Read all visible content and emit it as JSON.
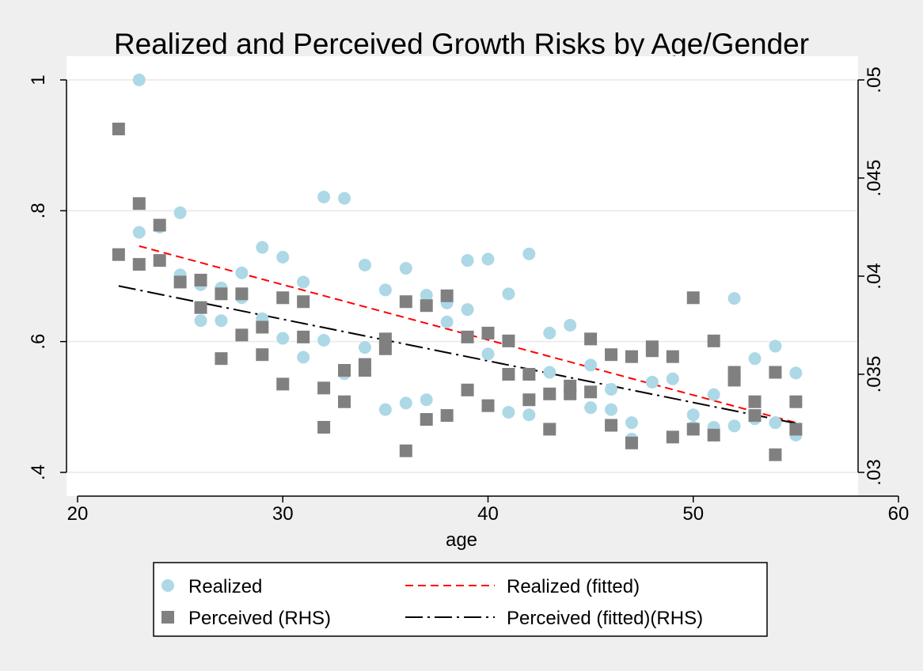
{
  "chart_data": {
    "type": "scatter",
    "title": "Realized and Perceived Growth Risks by Age/Gender",
    "xlabel": "age",
    "ylabel": "",
    "ylabel_right": "",
    "xlim": [
      20,
      60
    ],
    "ylim": [
      0.4,
      1.0
    ],
    "ylim_right": [
      0.03,
      0.05
    ],
    "x_ticks": [
      20,
      30,
      40,
      50,
      60
    ],
    "x_tick_labels": [
      "20",
      "30",
      "40",
      "50",
      "60"
    ],
    "y_ticks": [
      0.4,
      0.6,
      0.8,
      1.0
    ],
    "y_tick_labels": [
      ".4",
      ".6",
      ".8",
      "1"
    ],
    "y_right_ticks": [
      0.03,
      0.035,
      0.04,
      0.045,
      0.05
    ],
    "y_right_tick_labels": [
      ".03",
      ".035",
      ".04",
      ".045",
      ".05"
    ],
    "grid": "horizontal",
    "legend_position": "bottom",
    "colors": {
      "realized": "#add8e6",
      "perceived": "#808080",
      "realized_fit": "#ff0000",
      "perceived_fit": "#000000",
      "plot_bg": "#ffffff",
      "page_bg": "#efefef",
      "grid": "#e8e8e8"
    },
    "series": [
      {
        "name": "Realized",
        "axis": "left",
        "marker": "circle",
        "points": [
          [
            23,
            1.0
          ],
          [
            23,
            0.767
          ],
          [
            24,
            0.775
          ],
          [
            25,
            0.797
          ],
          [
            25,
            0.702
          ],
          [
            26,
            0.687
          ],
          [
            26,
            0.632
          ],
          [
            27,
            0.682
          ],
          [
            27,
            0.632
          ],
          [
            28,
            0.705
          ],
          [
            28,
            0.667
          ],
          [
            29,
            0.744
          ],
          [
            29,
            0.635
          ],
          [
            30,
            0.729
          ],
          [
            30,
            0.605
          ],
          [
            31,
            0.691
          ],
          [
            31,
            0.576
          ],
          [
            32,
            0.821
          ],
          [
            32,
            0.602
          ],
          [
            33,
            0.819
          ],
          [
            33,
            0.551
          ],
          [
            34,
            0.717
          ],
          [
            34,
            0.591
          ],
          [
            35,
            0.679
          ],
          [
            35,
            0.496
          ],
          [
            36,
            0.712
          ],
          [
            36,
            0.506
          ],
          [
            37,
            0.671
          ],
          [
            37,
            0.511
          ],
          [
            38,
            0.659
          ],
          [
            38,
            0.63
          ],
          [
            39,
            0.724
          ],
          [
            39,
            0.649
          ],
          [
            40,
            0.726
          ],
          [
            40,
            0.581
          ],
          [
            41,
            0.673
          ],
          [
            41,
            0.492
          ],
          [
            42,
            0.734
          ],
          [
            42,
            0.488
          ],
          [
            43,
            0.613
          ],
          [
            43,
            0.553
          ],
          [
            44,
            0.625
          ],
          [
            44,
            0.527
          ],
          [
            45,
            0.564
          ],
          [
            45,
            0.499
          ],
          [
            46,
            0.527
          ],
          [
            46,
            0.496
          ],
          [
            47,
            0.476
          ],
          [
            47,
            0.451
          ],
          [
            48,
            0.587
          ],
          [
            48,
            0.538
          ],
          [
            49,
            0.543
          ],
          [
            50,
            0.488
          ],
          [
            50,
            0.469
          ],
          [
            51,
            0.519
          ],
          [
            51,
            0.469
          ],
          [
            52,
            0.666
          ],
          [
            52,
            0.471
          ],
          [
            53,
            0.574
          ],
          [
            53,
            0.482
          ],
          [
            54,
            0.593
          ],
          [
            54,
            0.476
          ],
          [
            55,
            0.552
          ],
          [
            55,
            0.457
          ]
        ]
      },
      {
        "name": "Perceived (RHS)",
        "axis": "right",
        "marker": "square",
        "points": [
          [
            22,
            0.0475
          ],
          [
            22,
            0.0411
          ],
          [
            23,
            0.0437
          ],
          [
            23,
            0.0406
          ],
          [
            24,
            0.0426
          ],
          [
            24,
            0.0408
          ],
          [
            25,
            0.0397
          ],
          [
            26,
            0.0398
          ],
          [
            26,
            0.0384
          ],
          [
            27,
            0.0391
          ],
          [
            27,
            0.0358
          ],
          [
            28,
            0.0391
          ],
          [
            28,
            0.037
          ],
          [
            29,
            0.0374
          ],
          [
            29,
            0.036
          ],
          [
            30,
            0.0389
          ],
          [
            30,
            0.0345
          ],
          [
            31,
            0.0387
          ],
          [
            31,
            0.0369
          ],
          [
            32,
            0.0343
          ],
          [
            32,
            0.0323
          ],
          [
            33,
            0.0352
          ],
          [
            33,
            0.0336
          ],
          [
            34,
            0.0355
          ],
          [
            34,
            0.0352
          ],
          [
            35,
            0.0368
          ],
          [
            35,
            0.0363
          ],
          [
            36,
            0.0387
          ],
          [
            36,
            0.0311
          ],
          [
            37,
            0.0385
          ],
          [
            37,
            0.0327
          ],
          [
            38,
            0.039
          ],
          [
            38,
            0.0329
          ],
          [
            39,
            0.0369
          ],
          [
            39,
            0.0342
          ],
          [
            40,
            0.0371
          ],
          [
            40,
            0.0334
          ],
          [
            41,
            0.0367
          ],
          [
            41,
            0.035
          ],
          [
            42,
            0.035
          ],
          [
            42,
            0.0337
          ],
          [
            43,
            0.034
          ],
          [
            43,
            0.0322
          ],
          [
            44,
            0.0344
          ],
          [
            44,
            0.034
          ],
          [
            45,
            0.0368
          ],
          [
            45,
            0.0341
          ],
          [
            46,
            0.036
          ],
          [
            46,
            0.0324
          ],
          [
            47,
            0.0359
          ],
          [
            47,
            0.0315
          ],
          [
            48,
            0.0364
          ],
          [
            48,
            0.0362
          ],
          [
            49,
            0.0359
          ],
          [
            49,
            0.0318
          ],
          [
            50,
            0.0389
          ],
          [
            50,
            0.0322
          ],
          [
            51,
            0.0367
          ],
          [
            51,
            0.0319
          ],
          [
            52,
            0.0351
          ],
          [
            52,
            0.0347
          ],
          [
            53,
            0.0336
          ],
          [
            53,
            0.0329
          ],
          [
            54,
            0.0351
          ],
          [
            54,
            0.0309
          ],
          [
            55,
            0.0336
          ],
          [
            55,
            0.0322
          ]
        ]
      },
      {
        "name": "Realized (fitted)",
        "axis": "left",
        "type": "line",
        "style": "dashed",
        "points": [
          [
            23,
            0.746
          ],
          [
            55,
            0.476
          ]
        ]
      },
      {
        "name": "Perceived (fitted)(RHS)",
        "axis": "right",
        "type": "line",
        "style": "dash-dot",
        "points": [
          [
            22,
            0.0395
          ],
          [
            55,
            0.0325
          ]
        ]
      }
    ],
    "legend": [
      {
        "label": "Realized",
        "symbol": "circle"
      },
      {
        "label": "Realized (fitted)",
        "symbol": "dashed-line"
      },
      {
        "label": "Perceived (RHS)",
        "symbol": "square"
      },
      {
        "label": "Perceived (fitted)(RHS)",
        "symbol": "dash-dot-line"
      }
    ]
  }
}
